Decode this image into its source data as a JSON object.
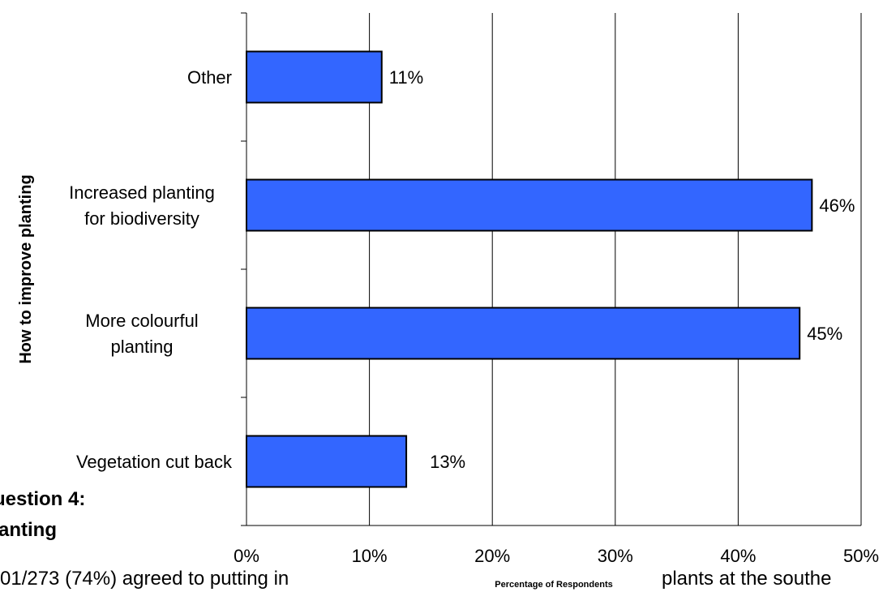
{
  "document": {
    "heading_line1": "uestion 4:",
    "heading_line2": "anting",
    "paragraph_left": "01/273 (74%) agreed to putting in",
    "paragraph_right": "plants at the southe"
  },
  "chart_data": {
    "type": "bar",
    "orientation": "horizontal",
    "categories": [
      "Other",
      "Increased planting for biodiversity",
      "More colourful planting",
      "Vegetation cut back"
    ],
    "category_label_lines": [
      [
        "Other"
      ],
      [
        "Increased planting",
        "for biodiversity"
      ],
      [
        "More colourful",
        "planting"
      ],
      [
        "Vegetation cut back"
      ]
    ],
    "values": [
      11,
      46,
      45,
      13
    ],
    "data_labels": [
      "11%",
      "46%",
      "45%",
      "13%"
    ],
    "xlim": [
      0,
      50
    ],
    "xticks": [
      0,
      10,
      20,
      30,
      40,
      50
    ],
    "xtick_labels": [
      "0%",
      "10%",
      "20%",
      "30%",
      "40%",
      "50%"
    ],
    "xlabel": "Percentage of Respondents",
    "ylabel": "How to improve planting",
    "grid": "vertical",
    "bar_color": "#3366FF",
    "bar_edge_color": "#000000"
  }
}
